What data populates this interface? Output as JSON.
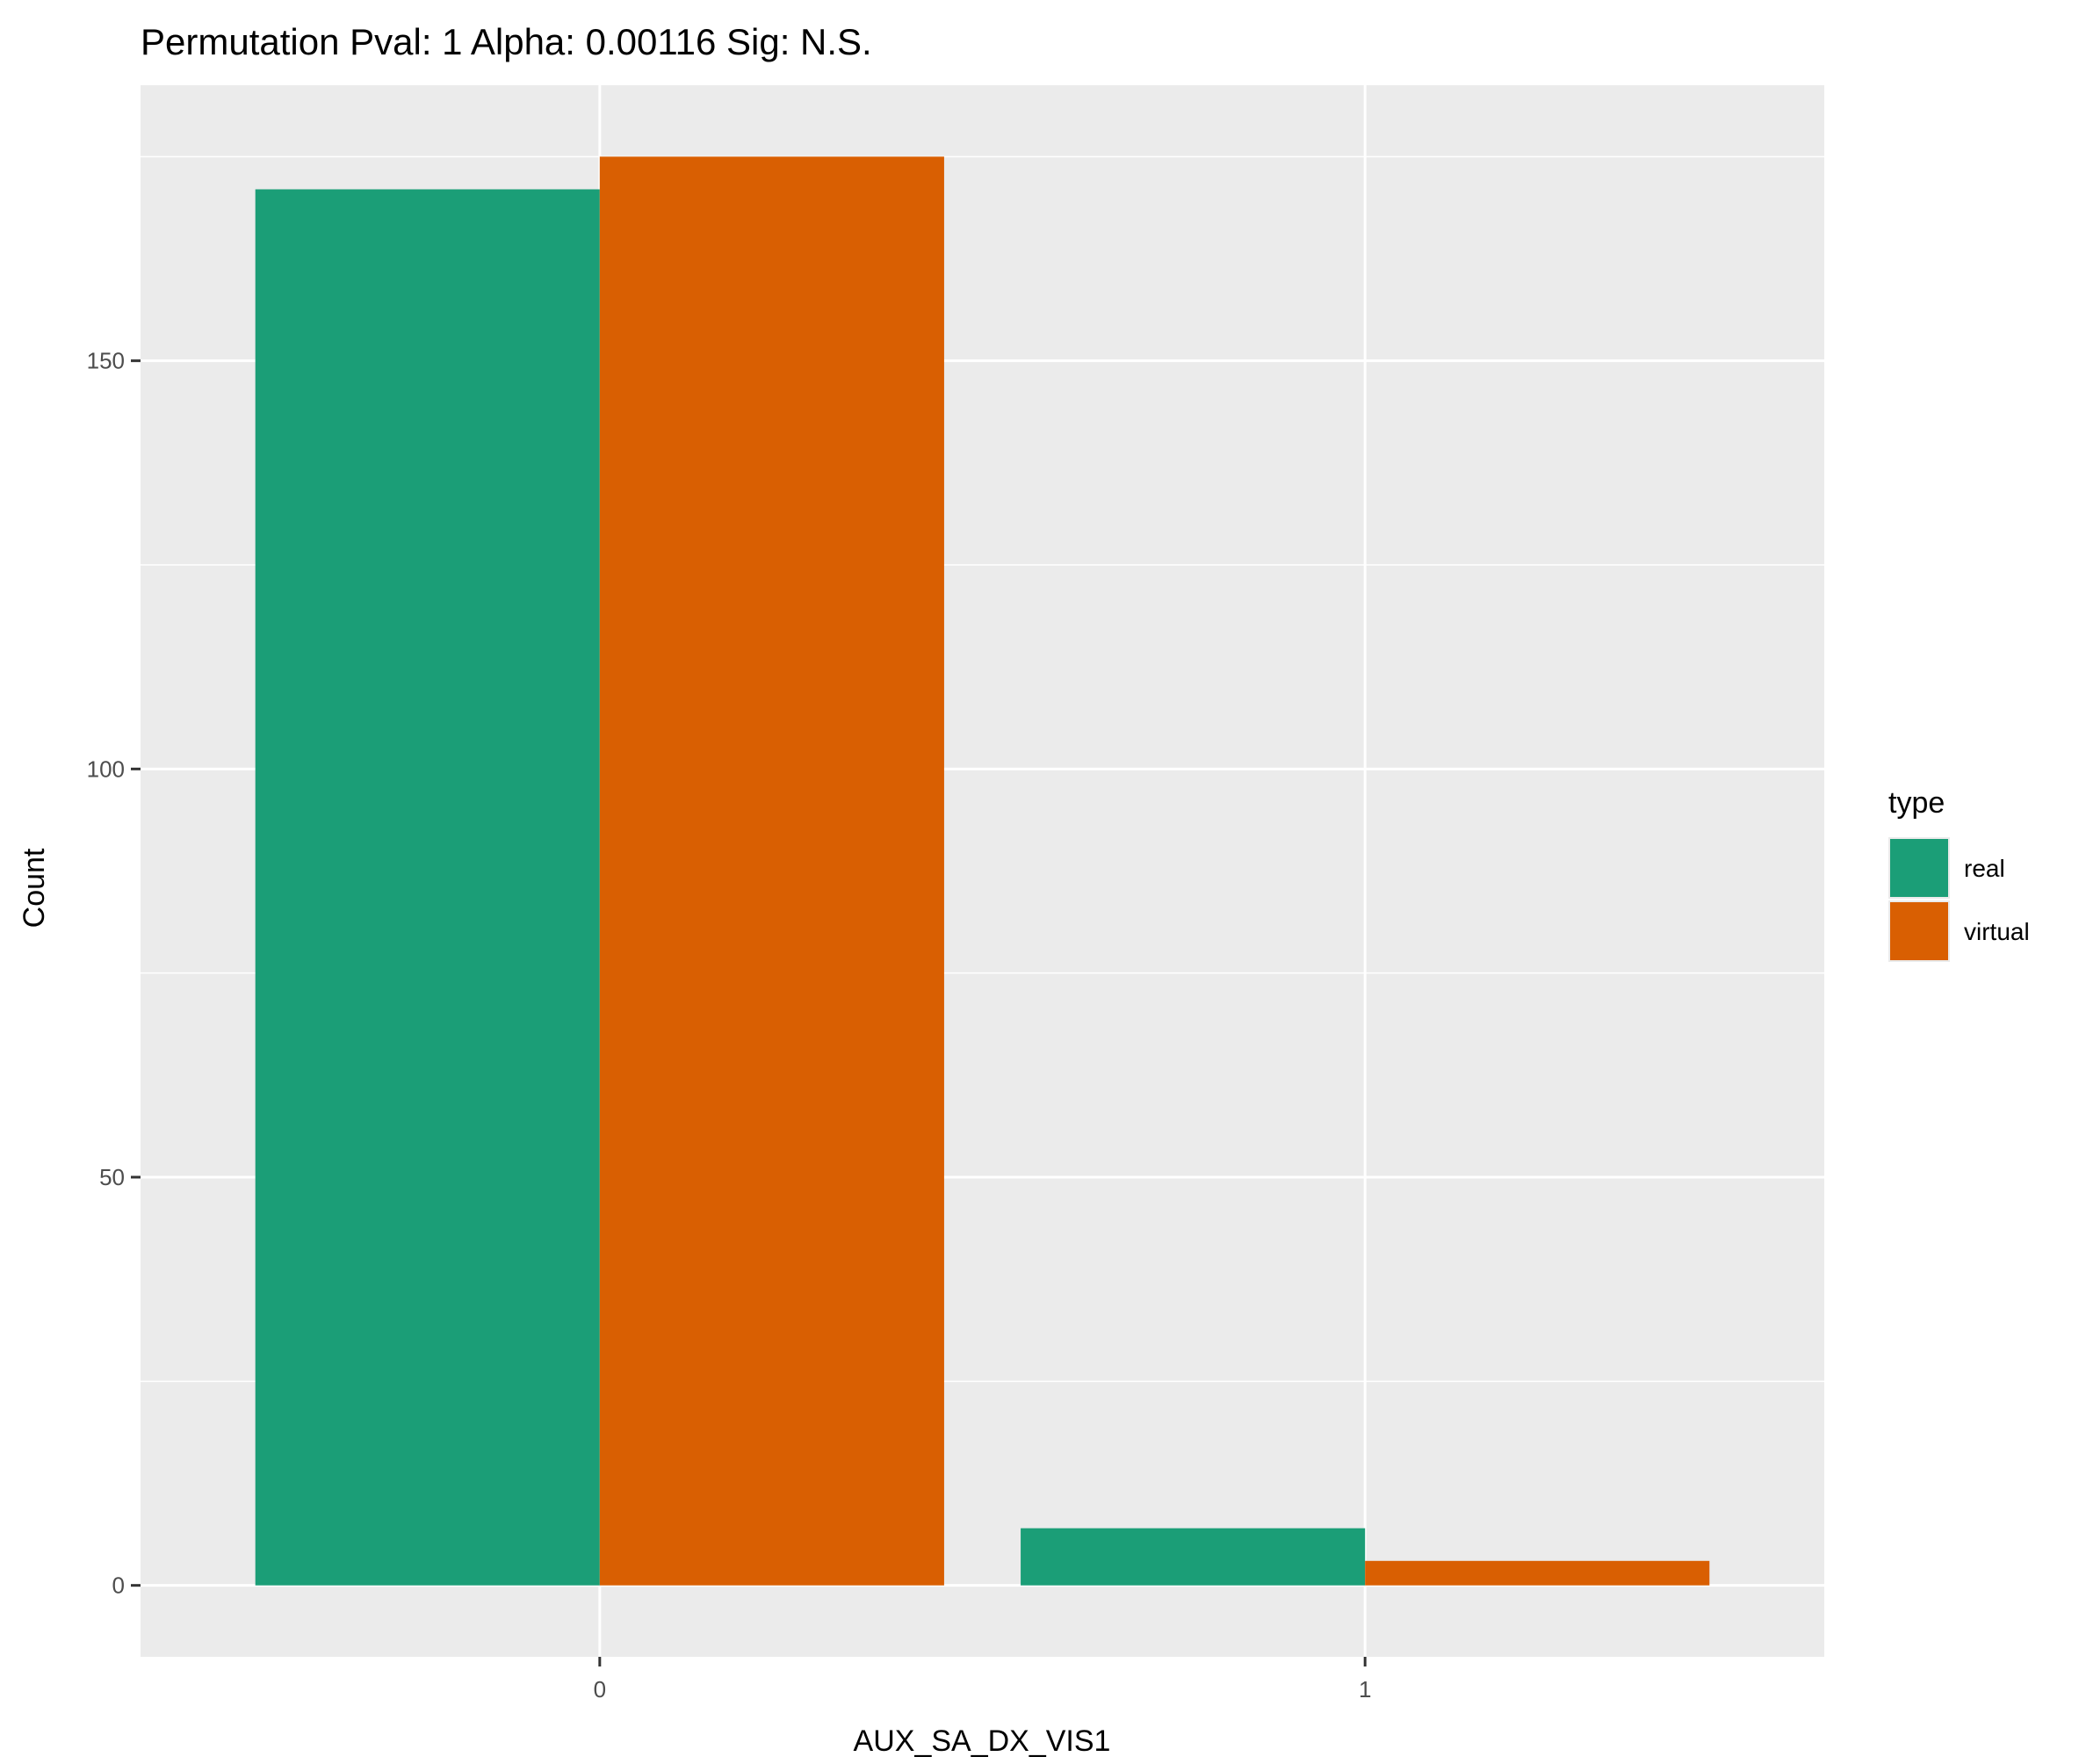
{
  "chart_data": {
    "type": "bar",
    "title": "Permutation Pval: 1 Alpha: 0.00116 Sig: N.S.",
    "xlabel": "AUX_SA_DX_VIS1",
    "ylabel": "Count",
    "categories": [
      "0",
      "1"
    ],
    "series": [
      {
        "name": "real",
        "values": [
          171,
          7
        ],
        "color": "#1b9e77"
      },
      {
        "name": "virtual",
        "values": [
          175,
          3
        ],
        "color": "#d95f02"
      }
    ],
    "ylim": [
      -8.75,
      183.75
    ],
    "yticks": [
      0,
      50,
      100,
      150
    ],
    "ytick_labels": [
      "0",
      "50",
      "100",
      "150"
    ],
    "legend_title": "type",
    "legend_position": "right",
    "grid": true
  }
}
